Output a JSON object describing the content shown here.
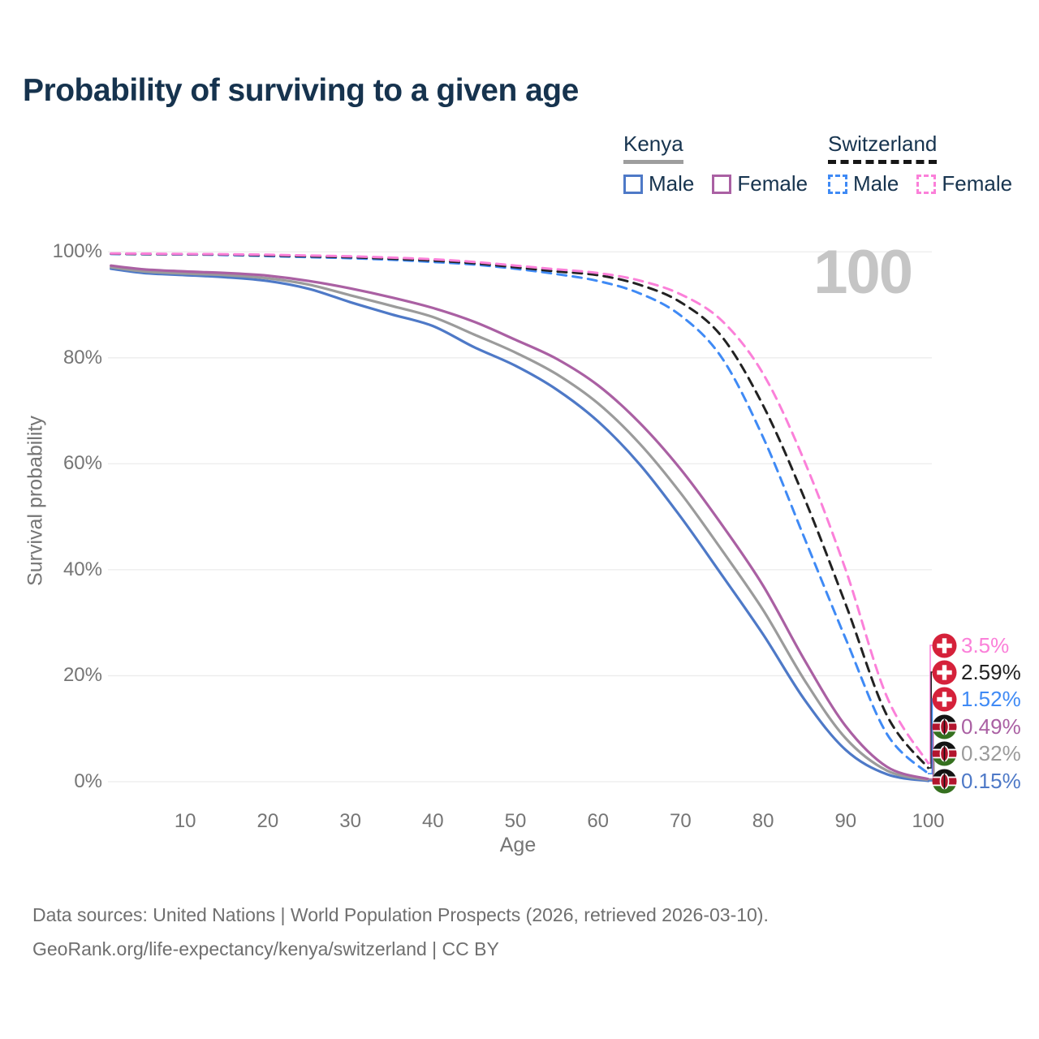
{
  "title": "Probability of surviving to a given age",
  "watermark_age": "100",
  "legend": {
    "kenya": {
      "label": "Kenya",
      "male": "Male",
      "female": "Female"
    },
    "switzerland": {
      "label": "Switzerland",
      "male": "Male",
      "female": "Female"
    }
  },
  "footer": {
    "line1": "Data sources: United Nations | World Population Prospects (2026, retrieved 2026-03-10).",
    "line2": "GeoRank.org/life-expectancy/kenya/switzerland | CC BY"
  },
  "colors": {
    "title": "#16334e",
    "axis_text": "#757575",
    "grid": "#ececec",
    "watermark": "#c5c5c5",
    "kenya_male": "#4e79c7",
    "kenya_female": "#aa60a3",
    "kenya_average": "#9b9b9b",
    "swiss_male": "#3f8af5",
    "swiss_female": "#fb80d9",
    "swiss_average": "#222222",
    "swiss_flag_red": "#d5213a",
    "kenya_flag_red": "#b3152e",
    "kenya_flag_green": "#35701f"
  },
  "chart_data": {
    "type": "line",
    "title": "Probability of surviving to a given age",
    "xlabel": "Age",
    "ylabel": "Survival probability",
    "xlim": [
      0,
      100
    ],
    "ylim": [
      0,
      100
    ],
    "grid": true,
    "legend_position": "top-right",
    "x_ticks": [
      10,
      20,
      30,
      40,
      50,
      60,
      70,
      80,
      90,
      100
    ],
    "y_ticks": [
      "100%",
      "80%",
      "60%",
      "40%",
      "20%",
      "0%"
    ],
    "x": [
      1,
      5,
      10,
      15,
      20,
      25,
      30,
      35,
      40,
      45,
      50,
      55,
      60,
      65,
      70,
      75,
      80,
      85,
      90,
      95,
      100
    ],
    "series": [
      {
        "name": "Kenya Male",
        "country": "Kenya",
        "sex": "Male",
        "style": "solid",
        "color": "#4e79c7",
        "values": [
          96.8,
          96.0,
          95.6,
          95.2,
          94.5,
          93.0,
          90.5,
          88.2,
          86.0,
          82.0,
          78.5,
          74.0,
          68.0,
          60.0,
          50.0,
          39.0,
          27.8,
          15.5,
          6.0,
          1.4,
          0.15
        ]
      },
      {
        "name": "Kenya Average",
        "country": "Kenya",
        "sex": "Both",
        "style": "solid",
        "color": "#9b9b9b",
        "values": [
          97.1,
          96.3,
          95.9,
          95.6,
          95.0,
          93.8,
          91.8,
          89.8,
          87.7,
          84.4,
          81.0,
          76.9,
          71.4,
          63.9,
          54.5,
          43.7,
          32.4,
          19.2,
          8.2,
          2.1,
          0.32
        ]
      },
      {
        "name": "Kenya Female",
        "country": "Kenya",
        "sex": "Female",
        "style": "solid",
        "color": "#aa60a3",
        "values": [
          97.4,
          96.7,
          96.3,
          96.0,
          95.5,
          94.5,
          93.1,
          91.4,
          89.4,
          86.8,
          83.4,
          79.8,
          74.8,
          67.8,
          59.0,
          48.5,
          37.0,
          23.0,
          10.5,
          2.8,
          0.49
        ]
      },
      {
        "name": "Switzerland Male",
        "country": "Switzerland",
        "sex": "Male",
        "style": "dashed",
        "color": "#3f8af5",
        "values": [
          99.6,
          99.55,
          99.5,
          99.4,
          99.2,
          99.0,
          98.8,
          98.5,
          98.1,
          97.6,
          96.8,
          95.8,
          94.5,
          92.2,
          88.0,
          80.0,
          65.0,
          46.0,
          27.0,
          9.0,
          1.52
        ]
      },
      {
        "name": "Switzerland Average",
        "country": "Switzerland",
        "sex": "Both",
        "style": "dashed",
        "color": "#222222",
        "values": [
          99.65,
          99.6,
          99.55,
          99.48,
          99.33,
          99.15,
          98.98,
          98.7,
          98.35,
          97.85,
          97.1,
          96.3,
          95.6,
          93.8,
          90.5,
          84.0,
          71.0,
          53.5,
          33.5,
          12.5,
          2.59
        ]
      },
      {
        "name": "Switzerland Female",
        "country": "Switzerland",
        "sex": "Female",
        "style": "dashed",
        "color": "#fb80d9",
        "values": [
          99.7,
          99.65,
          99.6,
          99.55,
          99.45,
          99.3,
          99.15,
          98.9,
          98.6,
          98.1,
          97.4,
          96.7,
          96.0,
          94.6,
          92.0,
          87.0,
          77.0,
          60.5,
          40.0,
          16.0,
          3.5
        ]
      }
    ],
    "end_labels": [
      {
        "text": "3.5%",
        "flag": "switzerland",
        "color": "#fb80d9",
        "series": "Switzerland Female"
      },
      {
        "text": "2.59%",
        "flag": "switzerland",
        "color": "#222222",
        "series": "Switzerland Average"
      },
      {
        "text": "1.52%",
        "flag": "switzerland",
        "color": "#3f8af5",
        "series": "Switzerland Male"
      },
      {
        "text": "0.49%",
        "flag": "kenya",
        "color": "#aa60a3",
        "series": "Kenya Female"
      },
      {
        "text": "0.32%",
        "flag": "kenya",
        "color": "#9b9b9b",
        "series": "Kenya Average"
      },
      {
        "text": "0.15%",
        "flag": "kenya",
        "color": "#4e79c7",
        "series": "Kenya Male"
      }
    ]
  }
}
